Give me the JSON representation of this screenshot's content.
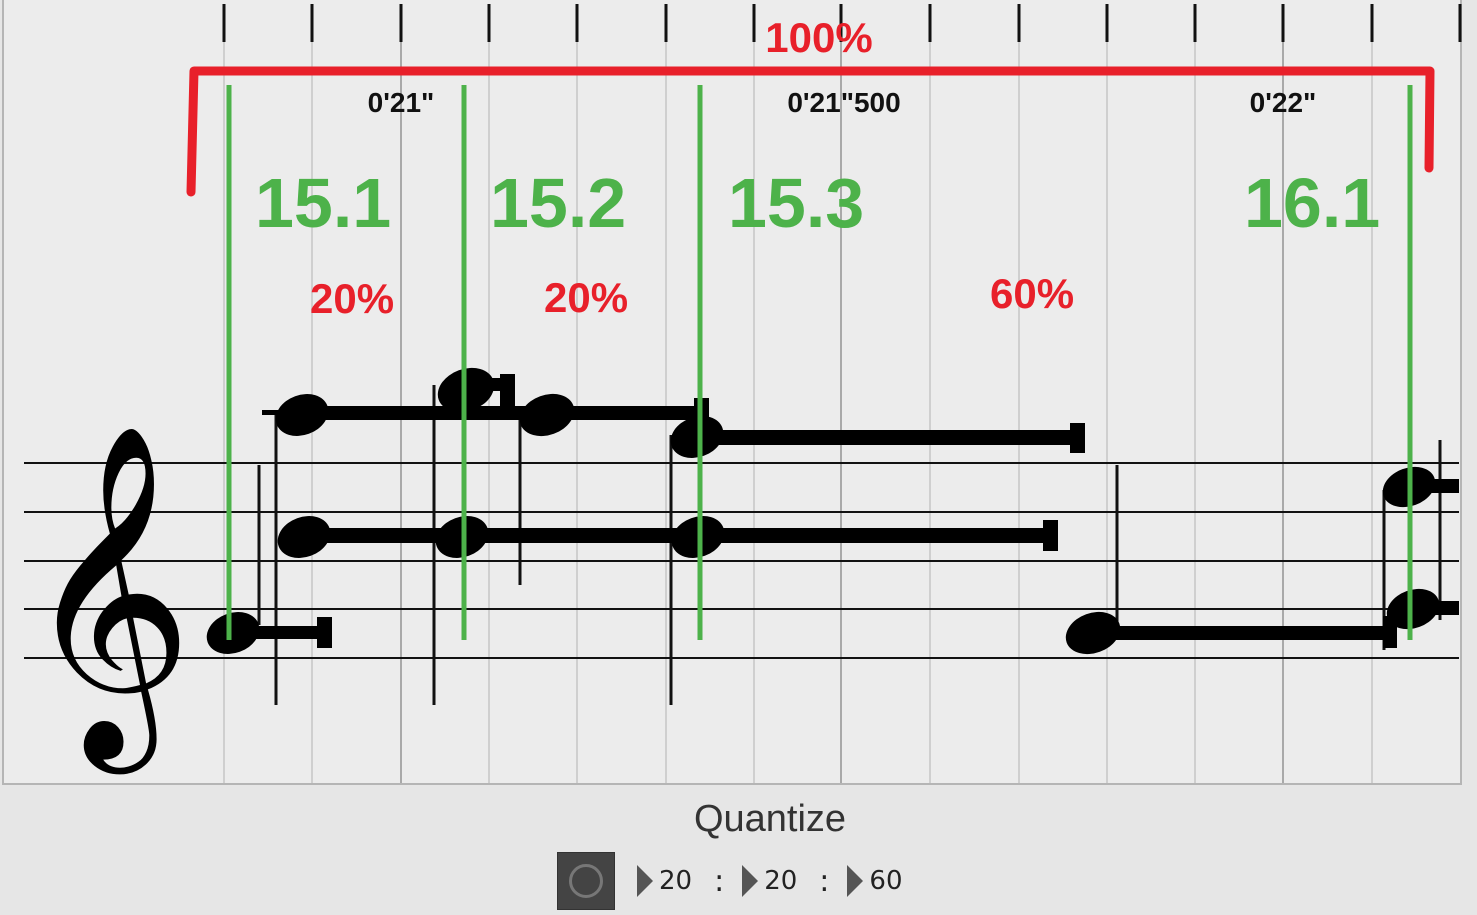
{
  "score": {
    "timeline": {
      "labels": [
        "0'21\"",
        "0'21\"500",
        "0'22\""
      ]
    },
    "measure_markers": [
      "15.1",
      "15.2",
      "15.3",
      "16.1"
    ],
    "percentages": {
      "total": "100%",
      "segments": [
        "20%",
        "20%",
        "60%"
      ]
    },
    "clef": "treble-clef-icon",
    "colors": {
      "marker_green": "#4db24a",
      "annotation_red": "#e8202a"
    }
  },
  "quantize": {
    "title": "Quantize",
    "button_icon": "record-circle-icon",
    "values": [
      "20",
      "20",
      "60"
    ],
    "separator": ":"
  }
}
